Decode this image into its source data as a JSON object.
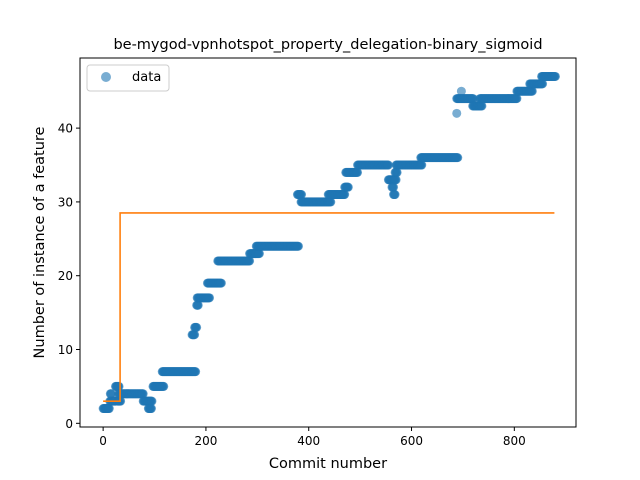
{
  "chart_data": {
    "type": "scatter",
    "title": "be-mygod-vpnhotspot_property_delegation-binary_sigmoid",
    "xlabel": "Commit number",
    "ylabel": "Number of instance of a feature",
    "xlim": [
      -45,
      920
    ],
    "ylim": [
      -0.5,
      49.5
    ],
    "xticks": [
      0,
      200,
      400,
      600,
      800
    ],
    "yticks": [
      0,
      10,
      20,
      30,
      40
    ],
    "grid": false,
    "legend": {
      "placement": "top-left",
      "entries": [
        "data"
      ]
    },
    "colors": {
      "points": "#1f77b4",
      "fit": "#ff7f0e"
    },
    "series": [
      {
        "name": "data",
        "kind": "scatter",
        "runs": [
          [
            0,
            12,
            2
          ],
          [
            13,
            20,
            3
          ],
          [
            14,
            16,
            4
          ],
          [
            21,
            25,
            3
          ],
          [
            24,
            31,
            5
          ],
          [
            28,
            34,
            3
          ],
          [
            30,
            78,
            4
          ],
          [
            78,
            95,
            3
          ],
          [
            88,
            94,
            2
          ],
          [
            97,
            118,
            5
          ],
          [
            115,
            180,
            7
          ],
          [
            173,
            178,
            12
          ],
          [
            178,
            182,
            13
          ],
          [
            182,
            185,
            16
          ],
          [
            183,
            207,
            17
          ],
          [
            203,
            230,
            19
          ],
          [
            223,
            285,
            22
          ],
          [
            285,
            304,
            23
          ],
          [
            298,
            380,
            24
          ],
          [
            378,
            386,
            31
          ],
          [
            385,
            443,
            30
          ],
          [
            438,
            470,
            31
          ],
          [
            470,
            477,
            32
          ],
          [
            472,
            495,
            34
          ],
          [
            495,
            555,
            35
          ],
          [
            555,
            570,
            33
          ],
          [
            562,
            565,
            32
          ],
          [
            565,
            568,
            31
          ],
          [
            568,
            572,
            34
          ],
          [
            570,
            620,
            35
          ],
          [
            618,
            690,
            36
          ],
          [
            688,
            720,
            44
          ],
          [
            719,
            737,
            43
          ],
          [
            733,
            805,
            44
          ],
          [
            805,
            835,
            45
          ],
          [
            830,
            855,
            46
          ],
          [
            853,
            880,
            47
          ]
        ],
        "points": [
          {
            "x": 688,
            "y": 42
          },
          {
            "x": 697,
            "y": 45
          }
        ]
      },
      {
        "name": "",
        "kind": "step-line",
        "x": [
          0,
          33,
          33,
          878
        ],
        "y": [
          3,
          3,
          28.5,
          28.5
        ]
      }
    ]
  }
}
